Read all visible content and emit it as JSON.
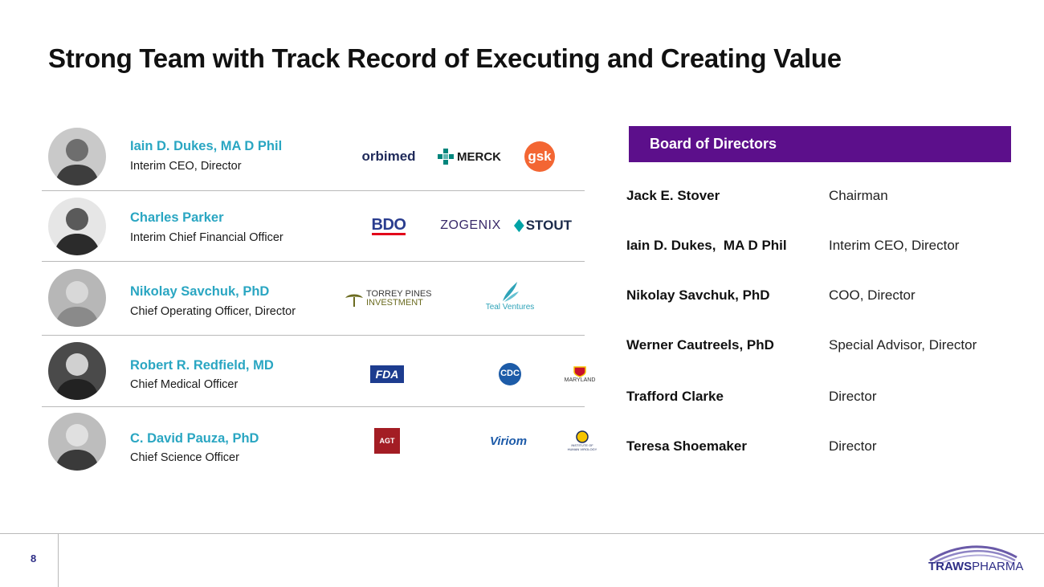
{
  "slide": {
    "title": "Strong Team with Track Record of Executing and Creating Value",
    "page_number": "8"
  },
  "team": [
    {
      "name": "Iain D. Dukes, MA D Phil",
      "role": "Interim CEO, Director",
      "logos": [
        "orbimed",
        "MERCK",
        "gsk"
      ]
    },
    {
      "name": "Charles Parker",
      "role": "Interim Chief Financial Officer",
      "logos": [
        "BDO",
        "ZOGENIX",
        "STOUT"
      ]
    },
    {
      "name": "Nikolay Savchuk, PhD",
      "role": "Chief Operating Officer, Director",
      "logos": [
        "TORREY PINES",
        "INVESTMENT",
        "Teal Ventures"
      ]
    },
    {
      "name": "Robert R. Redfield, MD",
      "role": "Chief Medical Officer",
      "logos": [
        "FDA",
        "CDC",
        "MARYLAND"
      ]
    },
    {
      "name": "C. David Pauza, PhD",
      "role": "Chief Science Officer",
      "logos": [
        "AGT",
        "Viriom",
        "INSTITUTE OF HUMAN VIROLOGY"
      ]
    }
  ],
  "board": {
    "heading": "Board of Directors",
    "members": [
      {
        "name": "Jack E. Stover",
        "title": "Chairman"
      },
      {
        "name": "Iain D. Dukes,  MA D Phil",
        "title": "Interim CEO, Director"
      },
      {
        "name": "Nikolay Savchuk, PhD",
        "title": "COO, Director"
      },
      {
        "name": "Werner Cautreels, PhD",
        "title": "Special Advisor, Director"
      },
      {
        "name": "Trafford Clarke",
        "title": "Director"
      },
      {
        "name": "Teresa Shoemaker",
        "title": "Director"
      }
    ]
  },
  "brand": {
    "part1": "TRAWS",
    "part2": "PHARMA"
  },
  "colors": {
    "accent": "#5c0f8b",
    "name_blue": "#2aa6c2",
    "navy": "#2d2d86"
  }
}
